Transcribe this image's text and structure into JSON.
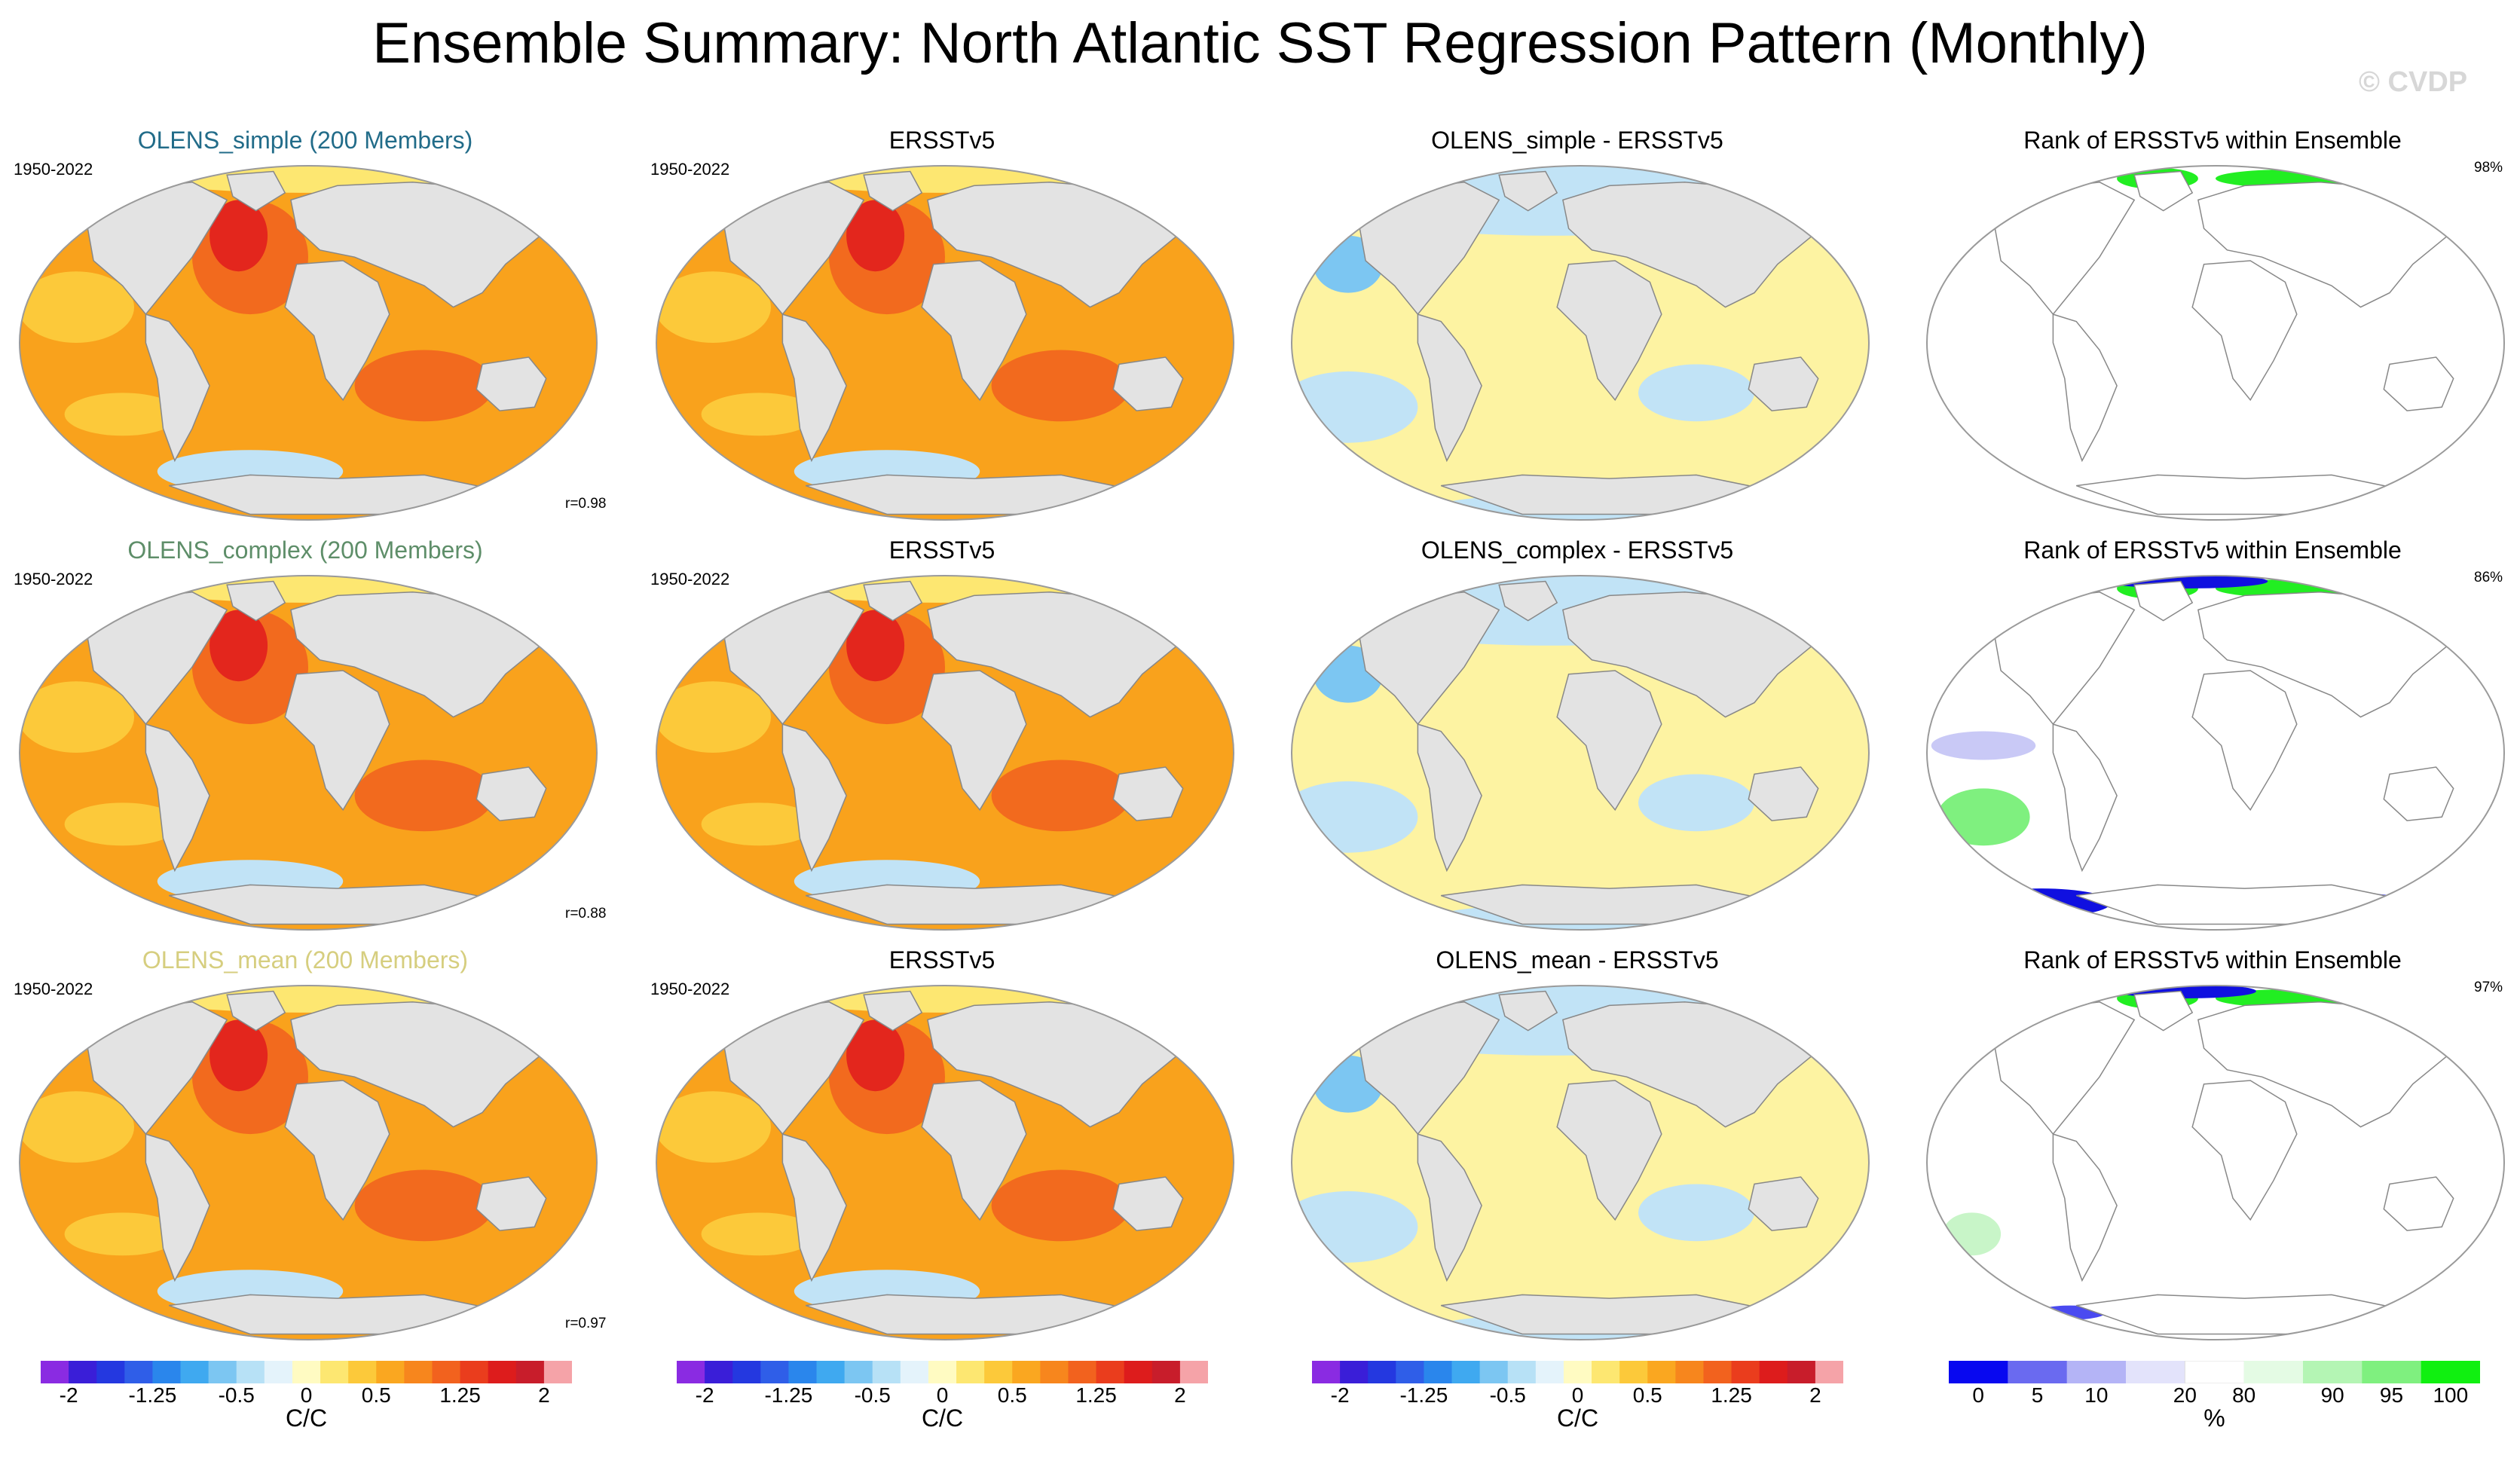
{
  "title": "Ensemble Summary: North Atlantic SST Regression Pattern (Monthly)",
  "watermark": "© CVDP",
  "colors": {
    "land": "#e3e3e3",
    "ocean_warm": "#f9a21c",
    "ocean_hot": "#f26a1e",
    "ocean_red": "#e3261d",
    "diff_yellow": "#fdf3a2",
    "diff_blue": "#c1e3f6",
    "rank_green": "#22ee22",
    "rank_blue": "#1010e0"
  },
  "chart_data": [
    {
      "type": "heatmap",
      "title": "OLENS_simple (200 Members)",
      "title_color": "#226c89",
      "period": "1950-2022",
      "annotation": "r=0.98",
      "kind": "field"
    },
    {
      "type": "heatmap",
      "title": "ERSSTv5",
      "title_color": "#000000",
      "period": "1950-2022",
      "annotation": "",
      "kind": "field"
    },
    {
      "type": "heatmap",
      "title": "OLENS_simple - ERSSTv5",
      "title_color": "#000000",
      "period": "",
      "annotation": "",
      "kind": "diff"
    },
    {
      "type": "heatmap",
      "title": "Rank of ERSSTv5 within Ensemble",
      "title_color": "#000000",
      "period": "",
      "annotation": "98%",
      "kind": "rank"
    },
    {
      "type": "heatmap",
      "title": "OLENS_complex (200 Members)",
      "title_color": "#5e8e69",
      "period": "1950-2022",
      "annotation": "r=0.88",
      "kind": "field"
    },
    {
      "type": "heatmap",
      "title": "ERSSTv5",
      "title_color": "#000000",
      "period": "1950-2022",
      "annotation": "",
      "kind": "field"
    },
    {
      "type": "heatmap",
      "title": "OLENS_complex - ERSSTv5",
      "title_color": "#000000",
      "period": "",
      "annotation": "",
      "kind": "diff"
    },
    {
      "type": "heatmap",
      "title": "Rank of ERSSTv5 within Ensemble",
      "title_color": "#000000",
      "period": "",
      "annotation": "86%",
      "kind": "rank"
    },
    {
      "type": "heatmap",
      "title": "OLENS_mean (200 Members)",
      "title_color": "#d6ce7f",
      "period": "1950-2022",
      "annotation": "r=0.97",
      "kind": "field"
    },
    {
      "type": "heatmap",
      "title": "ERSSTv5",
      "title_color": "#000000",
      "period": "1950-2022",
      "annotation": "",
      "kind": "field"
    },
    {
      "type": "heatmap",
      "title": "OLENS_mean - ERSSTv5",
      "title_color": "#000000",
      "period": "",
      "annotation": "",
      "kind": "diff"
    },
    {
      "type": "heatmap",
      "title": "Rank of ERSSTv5 within Ensemble",
      "title_color": "#000000",
      "period": "",
      "annotation": "97%",
      "kind": "rank"
    }
  ],
  "colorbars": [
    {
      "unit": "C/C",
      "ticks": [
        "-2",
        "-1.25",
        "-0.5",
        "0",
        "0.5",
        "1.25",
        "2"
      ],
      "colors": [
        "#8a2be2",
        "#3a1ed8",
        "#2438e0",
        "#2f5ee8",
        "#2a86ec",
        "#3fa9f0",
        "#7cc6f2",
        "#b7e1f6",
        "#e4f3fb",
        "#fffbc2",
        "#fde771",
        "#fcc93a",
        "#faa720",
        "#f7861d",
        "#f2621e",
        "#ea3d1d",
        "#dd1c1c",
        "#c81d2b",
        "#f5a3a8"
      ]
    },
    {
      "unit": "C/C",
      "ticks": [
        "-2",
        "-1.25",
        "-0.5",
        "0",
        "0.5",
        "1.25",
        "2"
      ],
      "colors": [
        "#8a2be2",
        "#3a1ed8",
        "#2438e0",
        "#2f5ee8",
        "#2a86ec",
        "#3fa9f0",
        "#7cc6f2",
        "#b7e1f6",
        "#e4f3fb",
        "#fffbc2",
        "#fde771",
        "#fcc93a",
        "#faa720",
        "#f7861d",
        "#f2621e",
        "#ea3d1d",
        "#dd1c1c",
        "#c81d2b",
        "#f5a3a8"
      ]
    },
    {
      "unit": "C/C",
      "ticks": [
        "-2",
        "-1.25",
        "-0.5",
        "0",
        "0.5",
        "1.25",
        "2"
      ],
      "colors": [
        "#8a2be2",
        "#3a1ed8",
        "#2438e0",
        "#2f5ee8",
        "#2a86ec",
        "#3fa9f0",
        "#7cc6f2",
        "#b7e1f6",
        "#e4f3fb",
        "#fffbc2",
        "#fde771",
        "#fcc93a",
        "#faa720",
        "#f7861d",
        "#f2621e",
        "#ea3d1d",
        "#dd1c1c",
        "#c81d2b",
        "#f5a3a8"
      ]
    },
    {
      "unit": "%",
      "ticks": [
        "0",
        "5",
        "10",
        "20",
        "80",
        "90",
        "95",
        "100"
      ],
      "colors": [
        "#0808f0",
        "#6a6af0",
        "#b4b4f6",
        "#e3e3fb",
        "#ffffff",
        "#e4fbe4",
        "#b4f5b4",
        "#7ff07f",
        "#10f010"
      ]
    }
  ]
}
